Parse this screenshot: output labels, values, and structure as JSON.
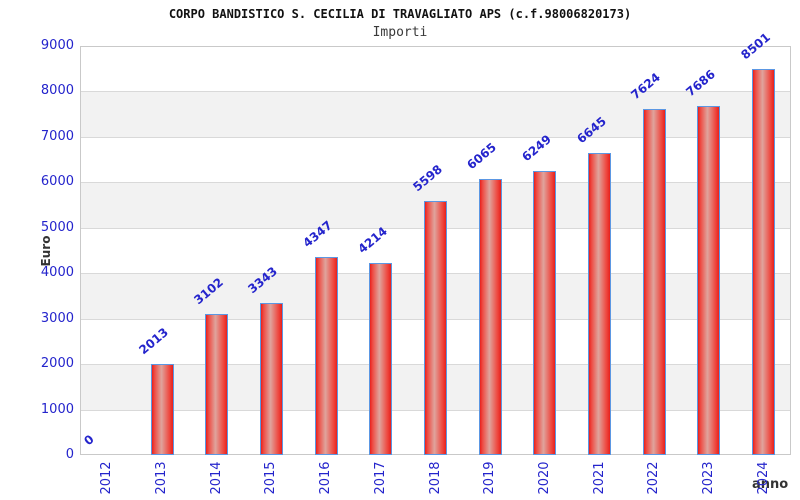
{
  "chart_data": {
    "type": "bar",
    "title": "CORPO BANDISTICO S. CECILIA DI TRAVAGLIATO APS (c.f.98006820173)",
    "subtitle": "Importi",
    "xlabel": "anno",
    "ylabel": "Euro",
    "categories": [
      "2012",
      "2013",
      "2014",
      "2015",
      "2016",
      "2017",
      "2018",
      "2019",
      "2020",
      "2021",
      "2022",
      "2023",
      "2024"
    ],
    "values": [
      0,
      2013,
      3102,
      3343,
      4347,
      4214,
      5598,
      6065,
      6249,
      6645,
      7624,
      7686,
      8501
    ],
    "value_labels": [
      "0",
      "2013",
      "3102",
      "3343",
      "4347",
      "4214",
      "5598",
      "6065",
      "6249",
      "6645",
      "7624",
      "7686",
      "8501"
    ],
    "ylim": [
      0,
      9000
    ],
    "ytick_step": 1000,
    "grid": true,
    "alternating_bands": true,
    "legend_position": "none",
    "colors": {
      "bar_fill_edge": "#e8201c",
      "bar_fill_mid": "#ee4a42",
      "bar_fill_highlight": "#dfa49d",
      "bar_border": "#5b97e3",
      "tick_label": "#2424cc",
      "value_label": "#2424cc",
      "axis_label": "#333333",
      "band_fill": "#f2f2f2",
      "gridline": "#d9d9d9",
      "plot_border": "#c9c9c9",
      "background": "#ffffff"
    }
  }
}
